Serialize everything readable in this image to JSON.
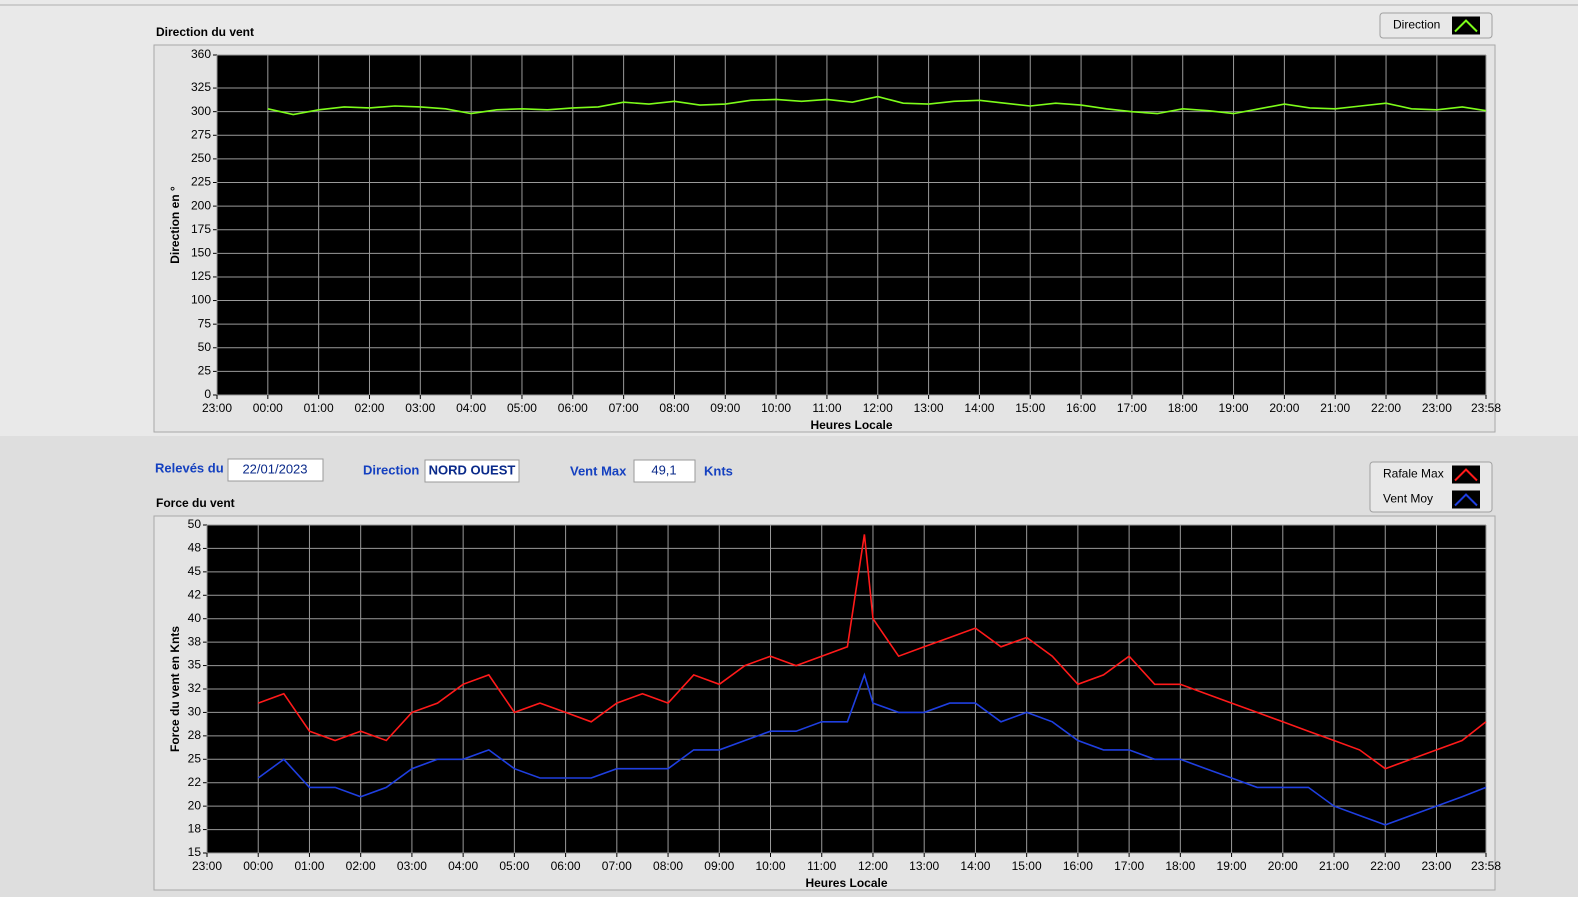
{
  "panel": {
    "date_label": "Relevés du",
    "date": "22/01/2023",
    "direction_label": "Direction",
    "direction": "NORD OUEST",
    "vmax_label": "Vent Max",
    "vmax": "49,1",
    "vmax_unit": "Knts"
  },
  "chart_data": [
    {
      "type": "line",
      "title": "Direction du vent",
      "x_label": "Heures Locale",
      "y_label": "Direction en °",
      "grid": true,
      "legend": "top-right",
      "xlim": [
        "23:00",
        "23:58"
      ],
      "xticks": [
        "23:00",
        "00:00",
        "01:00",
        "02:00",
        "03:00",
        "04:00",
        "05:00",
        "06:00",
        "07:00",
        "08:00",
        "09:00",
        "10:00",
        "11:00",
        "12:00",
        "13:00",
        "14:00",
        "15:00",
        "16:00",
        "17:00",
        "18:00",
        "19:00",
        "20:00",
        "21:00",
        "22:00",
        "23:00",
        "23:58"
      ],
      "ylim": [
        0,
        360
      ],
      "yticks": [
        0,
        25,
        50,
        75,
        100,
        125,
        150,
        175,
        200,
        225,
        250,
        275,
        300,
        325,
        360
      ],
      "x": [
        "00:00",
        "00:30",
        "01:00",
        "01:30",
        "02:00",
        "02:30",
        "03:00",
        "03:30",
        "04:00",
        "04:30",
        "05:00",
        "05:30",
        "06:00",
        "06:30",
        "07:00",
        "07:30",
        "08:00",
        "08:30",
        "09:00",
        "09:30",
        "10:00",
        "10:30",
        "11:00",
        "11:30",
        "12:00",
        "12:30",
        "13:00",
        "13:30",
        "14:00",
        "14:30",
        "15:00",
        "15:30",
        "16:00",
        "16:30",
        "17:00",
        "17:30",
        "18:00",
        "18:30",
        "19:00",
        "19:30",
        "20:00",
        "20:30",
        "21:00",
        "21:30",
        "22:00",
        "22:30",
        "23:00",
        "23:30",
        "23:58"
      ],
      "series": [
        {
          "name": "Direction",
          "color": "#7dfc1a",
          "values": [
            303,
            297,
            302,
            305,
            304,
            306,
            305,
            303,
            298,
            302,
            303,
            302,
            304,
            305,
            310,
            308,
            311,
            307,
            308,
            312,
            313,
            311,
            313,
            310,
            316,
            309,
            308,
            311,
            312,
            309,
            306,
            309,
            307,
            303,
            300,
            298,
            303,
            301,
            298,
            303,
            308,
            304,
            303,
            306,
            309,
            303,
            302,
            305,
            301
          ]
        }
      ]
    },
    {
      "type": "line",
      "title": "Force du vent",
      "x_label": "Heures Locale",
      "y_label": "Force du vent en Knts",
      "grid": true,
      "legend": "top-right",
      "xlim": [
        "23:00",
        "23:58"
      ],
      "xticks": [
        "23:00",
        "00:00",
        "01:00",
        "02:00",
        "03:00",
        "04:00",
        "05:00",
        "06:00",
        "07:00",
        "08:00",
        "09:00",
        "10:00",
        "11:00",
        "12:00",
        "13:00",
        "14:00",
        "15:00",
        "16:00",
        "17:00",
        "18:00",
        "19:00",
        "20:00",
        "21:00",
        "22:00",
        "23:00",
        "23:58"
      ],
      "ylim": [
        15,
        50
      ],
      "yticks": [
        15,
        {
          "value": 17.5,
          "label": "18"
        },
        20,
        {
          "value": 22.5,
          "label": "22"
        },
        25,
        {
          "value": 27.5,
          "label": "28"
        },
        30,
        {
          "value": 32.5,
          "label": "32"
        },
        35,
        {
          "value": 37.5,
          "label": "38"
        },
        40,
        {
          "value": 42.5,
          "label": "42"
        },
        45,
        {
          "value": 47.5,
          "label": "48"
        },
        50
      ],
      "x": [
        "00:00",
        "00:30",
        "01:00",
        "01:30",
        "02:00",
        "02:30",
        "03:00",
        "03:30",
        "04:00",
        "04:30",
        "05:00",
        "05:30",
        "06:00",
        "06:30",
        "07:00",
        "07:30",
        "08:00",
        "08:30",
        "09:00",
        "09:30",
        "10:00",
        "10:30",
        "11:00",
        "11:30",
        "11:50",
        "12:00",
        "12:30",
        "13:00",
        "13:30",
        "14:00",
        "14:30",
        "15:00",
        "15:30",
        "16:00",
        "16:30",
        "17:00",
        "17:30",
        "18:00",
        "18:30",
        "19:00",
        "19:30",
        "20:00",
        "20:30",
        "21:00",
        "21:30",
        "22:00",
        "22:30",
        "23:00",
        "23:30",
        "23:58"
      ],
      "series": [
        {
          "name": "Rafale Max",
          "color": "#ff1a1a",
          "values": [
            31,
            32,
            28,
            27,
            28,
            27,
            30,
            31,
            33,
            34,
            30,
            31,
            30,
            29,
            31,
            32,
            31,
            34,
            33,
            35,
            36,
            35,
            36,
            37,
            49,
            40,
            36,
            37,
            38,
            39,
            37,
            38,
            36,
            33,
            34,
            36,
            33,
            33,
            32,
            31,
            30,
            29,
            28,
            27,
            26,
            24,
            25,
            26,
            27,
            29
          ]
        },
        {
          "name": "Vent Moy",
          "color": "#1f3fe0",
          "values": [
            23,
            25,
            22,
            22,
            21,
            22,
            24,
            25,
            25,
            26,
            24,
            23,
            23,
            23,
            24,
            24,
            24,
            26,
            26,
            27,
            28,
            28,
            29,
            29,
            34,
            31,
            30,
            30,
            31,
            31,
            29,
            30,
            29,
            27,
            26,
            26,
            25,
            25,
            24,
            23,
            22,
            22,
            22,
            20,
            19,
            18,
            19,
            20,
            21,
            22
          ]
        }
      ]
    }
  ]
}
